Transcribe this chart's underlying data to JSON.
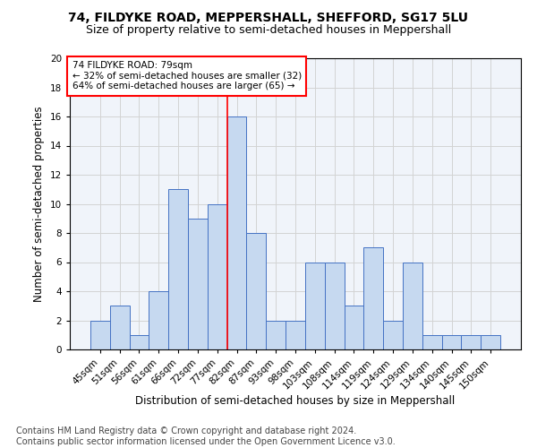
{
  "title1": "74, FILDYKE ROAD, MEPPERSHALL, SHEFFORD, SG17 5LU",
  "title2": "Size of property relative to semi-detached houses in Meppershall",
  "xlabel": "Distribution of semi-detached houses by size in Meppershall",
  "ylabel": "Number of semi-detached properties",
  "footnote1": "Contains HM Land Registry data © Crown copyright and database right 2024.",
  "footnote2": "Contains public sector information licensed under the Open Government Licence v3.0.",
  "annotation_line1": "74 FILDYKE ROAD: 79sqm",
  "annotation_line2": "← 32% of semi-detached houses are smaller (32)",
  "annotation_line3": "64% of semi-detached houses are larger (65) →",
  "bar_labels": [
    "45sqm",
    "51sqm",
    "56sqm",
    "61sqm",
    "66sqm",
    "72sqm",
    "77sqm",
    "82sqm",
    "87sqm",
    "93sqm",
    "98sqm",
    "103sqm",
    "108sqm",
    "114sqm",
    "119sqm",
    "124sqm",
    "129sqm",
    "134sqm",
    "140sqm",
    "145sqm",
    "150sqm"
  ],
  "bar_values": [
    2,
    3,
    1,
    4,
    11,
    9,
    10,
    16,
    8,
    2,
    2,
    6,
    6,
    3,
    7,
    2,
    6,
    1,
    1,
    1,
    1
  ],
  "bar_color": "#c6d9f0",
  "bar_edge_color": "#4472c4",
  "property_line_x": 6.5,
  "property_line_color": "red",
  "ylim": [
    0,
    20
  ],
  "yticks": [
    0,
    2,
    4,
    6,
    8,
    10,
    12,
    14,
    16,
    18,
    20
  ],
  "annotation_box_color": "red",
  "title1_fontsize": 10,
  "title2_fontsize": 9,
  "xlabel_fontsize": 8.5,
  "ylabel_fontsize": 8.5,
  "tick_fontsize": 7.5,
  "footnote_fontsize": 7,
  "annotation_fontsize": 7.5
}
